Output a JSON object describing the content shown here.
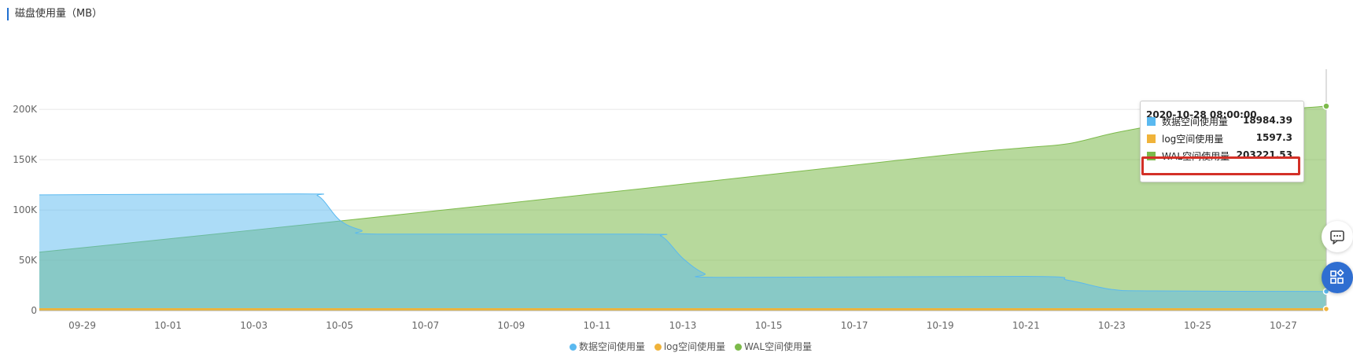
{
  "panel": {
    "title": "磁盘使用量（MB）"
  },
  "chart_data": {
    "type": "area",
    "title": "磁盘使用量（MB）",
    "xlabel": "",
    "ylabel": "",
    "x_ticks": [
      "09-29",
      "10-01",
      "10-03",
      "10-05",
      "10-07",
      "10-09",
      "10-11",
      "10-13",
      "10-15",
      "10-17",
      "10-19",
      "10-21",
      "10-23",
      "10-25",
      "10-27"
    ],
    "y_ticks": [
      "0",
      "50K",
      "100K",
      "150K",
      "200K"
    ],
    "ylim": [
      0,
      240000
    ],
    "xlim": [
      "2020-09-28",
      "2020-10-28"
    ],
    "grid": true,
    "legend_position": "bottom",
    "series": [
      {
        "name": "WAL空间使用量",
        "color": "#7cba4a",
        "points": [
          [
            "2020-09-28",
            58000
          ],
          [
            "2020-10-05",
            89000
          ],
          [
            "2020-10-12",
            121000
          ],
          [
            "2020-10-19",
            154000
          ],
          [
            "2020-10-21",
            162000
          ],
          [
            "2020-10-22",
            166000
          ],
          [
            "2020-10-23",
            176000
          ],
          [
            "2020-10-24",
            184000
          ],
          [
            "2020-10-25",
            191000
          ],
          [
            "2020-10-26",
            196000
          ],
          [
            "2020-10-27",
            200000
          ],
          [
            "2020-10-28",
            203221.53
          ]
        ]
      },
      {
        "name": "数据空间使用量",
        "color": "#5ab9f0",
        "points": [
          [
            "2020-09-28",
            115000
          ],
          [
            "2020-10-04",
            116000
          ],
          [
            "2020-10-04 12:00",
            114000
          ],
          [
            "2020-10-05",
            90000
          ],
          [
            "2020-10-05 12:00",
            80000
          ],
          [
            "2020-10-06",
            76000
          ],
          [
            "2020-10-12",
            76000
          ],
          [
            "2020-10-12 12:00",
            74000
          ],
          [
            "2020-10-13",
            52000
          ],
          [
            "2020-10-13 12:00",
            37000
          ],
          [
            "2020-10-14",
            33000
          ],
          [
            "2020-10-21",
            34000
          ],
          [
            "2020-10-22",
            30000
          ],
          [
            "2020-10-23",
            21000
          ],
          [
            "2020-10-24",
            19500
          ],
          [
            "2020-10-28",
            18984.39
          ]
        ]
      },
      {
        "name": "log空间使用量",
        "color": "#f0b33a",
        "points": [
          [
            "2020-09-28",
            1600
          ],
          [
            "2020-10-28",
            1597.3
          ]
        ]
      }
    ],
    "tooltip": {
      "time": "2020-10-28 08:00:00",
      "items": [
        {
          "name": "数据空间使用量",
          "value": "18984.39",
          "color": "#5ab9f0"
        },
        {
          "name": "log空间使用量",
          "value": "1597.3",
          "color": "#f0b33a"
        },
        {
          "name": "WAL空间使用量",
          "value": "203221.53",
          "color": "#7cba4a",
          "highlighted": true
        }
      ]
    }
  },
  "legend": [
    {
      "label": "数据空间使用量",
      "color": "#5ab9f0"
    },
    {
      "label": "log空间使用量",
      "color": "#f0b33a"
    },
    {
      "label": "WAL空间使用量",
      "color": "#7cba4a"
    }
  ],
  "floating_buttons": [
    {
      "icon": "chat-icon"
    },
    {
      "icon": "apps-icon"
    }
  ]
}
